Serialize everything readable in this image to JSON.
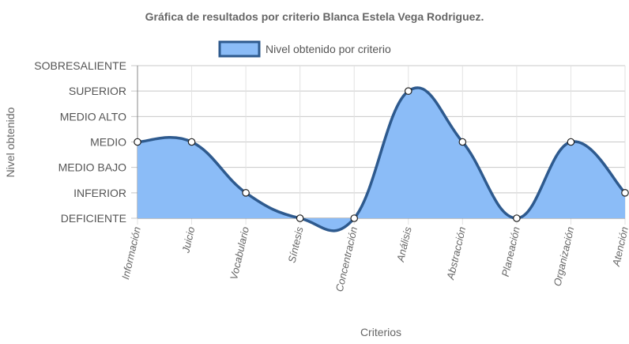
{
  "chart_data": {
    "type": "area",
    "title": "Gráfica de resultados por criterio Blanca Estela Vega Rodriguez.",
    "xlabel": "Criterios",
    "ylabel": "Nivel obtenido",
    "categories": [
      "Información",
      "Juicio",
      "Vocabulario",
      "Síntesis",
      "Concentración",
      "Análisis",
      "Abstracción",
      "Planeación",
      "Organización",
      "Atención"
    ],
    "y_levels": [
      "DEFICIENTE",
      "INFERIOR",
      "MEDIO BAJO",
      "MEDIO",
      "MEDIO ALTO",
      "SUPERIOR",
      "SOBRESALIENTE"
    ],
    "series": [
      {
        "name": "Nivel obtenido por criterio",
        "values": [
          3,
          3,
          1,
          0,
          0,
          5,
          3,
          0,
          3,
          1
        ]
      }
    ],
    "ylim": [
      0,
      6
    ],
    "grid": true,
    "legend_position": "top-center",
    "colors": {
      "fill": "#8bbcf7",
      "stroke": "#2e5a8e",
      "grid": "#c8c8c8",
      "axis": "#888888"
    }
  }
}
